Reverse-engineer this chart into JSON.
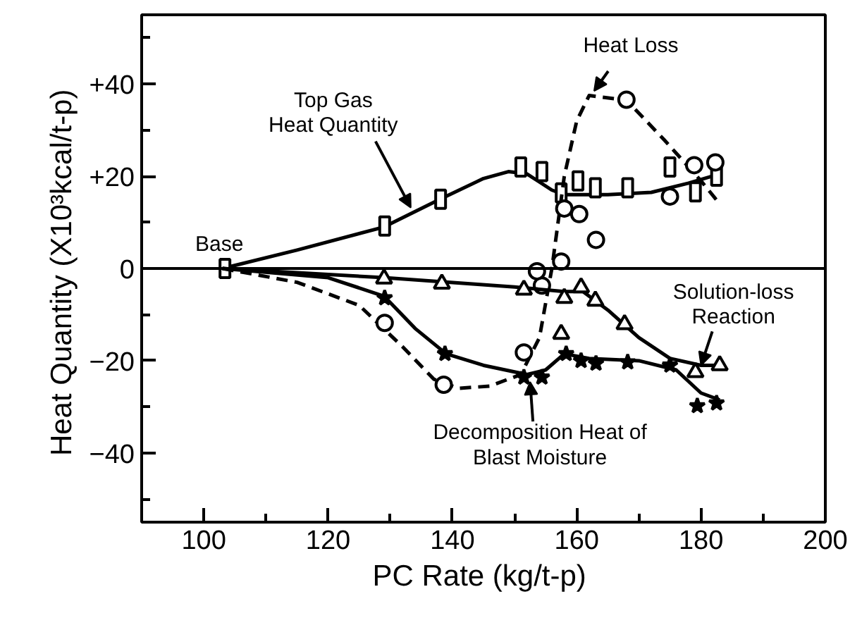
{
  "chart_data": {
    "type": "line",
    "xlabel": "PC Rate  (kg/t-p)",
    "ylabel": "Heat Quantity  (X10³kcal/t-p)",
    "xlim": [
      90,
      200
    ],
    "ylim": [
      -55,
      55
    ],
    "xticks": [
      100,
      120,
      140,
      160,
      180,
      200
    ],
    "yticks": [
      {
        "value": -40,
        "label": "−40"
      },
      {
        "value": -20,
        "label": "−20"
      },
      0,
      {
        "value": 20,
        "label": "+20"
      },
      {
        "value": 40,
        "label": "+40"
      }
    ],
    "grid": false,
    "ref_lines": [
      {
        "axis": "y",
        "value": 0,
        "color": "#000000",
        "line_style": "solid"
      }
    ],
    "series": [
      {
        "color": "#000000",
        "line_style": "solid",
        "marker": "none",
        "x": [
          103,
          115,
          129,
          138,
          145,
          149,
          152,
          156,
          158,
          165,
          172,
          178,
          183
        ],
        "values": [
          0,
          4,
          9,
          15,
          19.5,
          21,
          20.5,
          17,
          16,
          16,
          16.5,
          18.5,
          20.5
        ]
      },
      {
        "type": "scatter",
        "color": "#000000",
        "marker": "square",
        "x": [
          103.4,
          129.1,
          138.1,
          151,
          154.4,
          157.5,
          160.2,
          163,
          168.2,
          175,
          179.1,
          182.5
        ],
        "values": [
          0,
          9.2,
          15,
          22,
          21,
          16.4,
          19,
          17.5,
          17.5,
          22,
          16.6,
          20
        ]
      },
      {
        "color": "#000000",
        "line_style": "dashed",
        "marker": "none",
        "x": [
          103,
          115,
          125,
          132,
          137,
          141,
          146,
          151,
          154,
          156,
          158,
          160,
          162,
          168,
          174,
          180,
          183
        ],
        "values": [
          0,
          -3,
          -8,
          -17,
          -24,
          -26,
          -25.5,
          -23,
          -15,
          0,
          20,
          32,
          37.5,
          36.5,
          28,
          19,
          14
        ]
      },
      {
        "type": "scatter",
        "color": "#000000",
        "marker": "circle",
        "x": [
          129.1,
          138.6,
          151.5,
          154.4,
          153.6,
          157.5,
          158,
          160.4,
          163.1,
          168,
          175,
          178.9,
          182.3
        ],
        "values": [
          -11.8,
          -25.2,
          -18.2,
          -3.7,
          -0.6,
          1.5,
          13,
          11.8,
          6.2,
          36.6,
          15.6,
          22.4,
          23
        ]
      },
      {
        "color": "#000000",
        "line_style": "solid",
        "marker": "none",
        "x": [
          103,
          129,
          150,
          158,
          161,
          165,
          170,
          175,
          180,
          183
        ],
        "values": [
          0,
          -2,
          -4,
          -5,
          -5,
          -9,
          -15,
          -19.5,
          -21,
          -21
        ]
      },
      {
        "type": "scatter",
        "color": "#000000",
        "marker": "triangle",
        "x": [
          129,
          138.3,
          151.5,
          157.5,
          158,
          160.7,
          163,
          167.7,
          179.1,
          183
        ],
        "values": [
          -2.2,
          -3.3,
          -4.6,
          -14.2,
          -6.4,
          -4.1,
          -7,
          -12.1,
          -22.5,
          -21
        ]
      },
      {
        "color": "#000000",
        "line_style": "solid",
        "marker": "none",
        "x": [
          103,
          120,
          129,
          134,
          139,
          145,
          152,
          155,
          158,
          162,
          170,
          176,
          180,
          183
        ],
        "values": [
          0,
          -2,
          -6,
          -13,
          -18.5,
          -21,
          -23,
          -22,
          -18.5,
          -19.5,
          -20,
          -22,
          -27,
          -28.5
        ]
      },
      {
        "type": "scatter",
        "color": "#000000",
        "marker": "star",
        "x": [
          129.1,
          138.8,
          151.5,
          154.4,
          158.3,
          160.7,
          163.1,
          168.2,
          175,
          179.4,
          182.5
        ],
        "values": [
          -6.4,
          -18.5,
          -23.6,
          -23.6,
          -18.5,
          -20,
          -20.6,
          -20.3,
          -21,
          -29.8,
          -29.2
        ]
      }
    ],
    "annotations": [
      {
        "text": "Base",
        "x": 103.4,
        "y": 0
      },
      {
        "text": "Top Gas\nHeat Quantity",
        "x": 133.3,
        "y": 13.2
      },
      {
        "text": "Heat Loss",
        "x": 162.8,
        "y": 38.5
      },
      {
        "text": "Solution-loss\nReaction",
        "x": 180,
        "y": -21
      },
      {
        "text": "Decomposition Heat of\nBlast Moisture",
        "x": 152.5,
        "y": -24.6
      }
    ]
  }
}
